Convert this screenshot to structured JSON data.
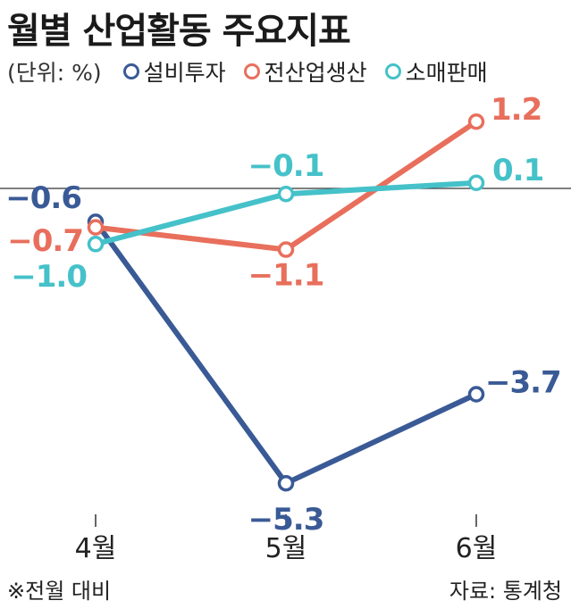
{
  "title": "월별 산업활동 주요지표",
  "unit_label": "(단위: %)",
  "note": "※전월 대비",
  "source": "자료: 통계청",
  "chart_data": {
    "type": "line",
    "x": [
      "4월",
      "5월",
      "6월"
    ],
    "series": [
      {
        "name": "설비투자",
        "color": "#3a5a96",
        "values": [
          -0.6,
          -5.3,
          -3.7
        ],
        "labels": [
          "−0.6",
          "−5.3",
          "−3.7"
        ]
      },
      {
        "name": "전산업생산",
        "color": "#e86f5c",
        "values": [
          -0.7,
          -1.1,
          1.2
        ],
        "labels": [
          "−0.7",
          "−1.1",
          "1.2"
        ]
      },
      {
        "name": "소매판매",
        "color": "#45c1c9",
        "values": [
          -1.0,
          -0.1,
          0.1
        ],
        "labels": [
          "−1.0",
          "−0.1",
          "0.1"
        ]
      }
    ],
    "baseline": 0,
    "grid": false,
    "legend": "top"
  }
}
